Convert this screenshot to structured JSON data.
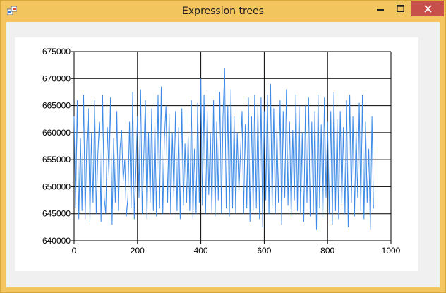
{
  "window": {
    "title": "Expression trees",
    "controls": [
      "minimize",
      "maximize",
      "close"
    ],
    "colors": {
      "frame": "#f3c55f",
      "close": "#c7504b"
    }
  },
  "chart_data": {
    "type": "line",
    "title": "",
    "xlabel": "",
    "ylabel": "",
    "xlim": [
      0,
      1000
    ],
    "ylim": [
      640000,
      675000
    ],
    "x_ticks": [
      0,
      200,
      400,
      600,
      800,
      1000
    ],
    "y_ticks": [
      640000,
      645000,
      650000,
      655000,
      660000,
      665000,
      670000,
      675000
    ],
    "x_tick_labels": [
      "0",
      "200",
      "400",
      "600",
      "800",
      "1000"
    ],
    "y_tick_labels": [
      "640000",
      "645000",
      "650000",
      "655000",
      "660000",
      "665000",
      "670000",
      "675000"
    ],
    "grid": true,
    "series": [
      {
        "color": "#3c8ae6",
        "x_step": 5,
        "values": [
          663000,
          646000,
          666000,
          644000,
          659000,
          645500,
          667000,
          644000,
          658000,
          664500,
          643500,
          660000,
          647000,
          666000,
          645000,
          656000,
          662000,
          643500,
          667000,
          648000,
          645000,
          661000,
          652000,
          666500,
          643000,
          659000,
          647000,
          664000,
          645500,
          657000,
          660500,
          651000,
          655000,
          644500,
          648000,
          662000,
          646000,
          667500,
          644000,
          653000,
          663000,
          648000,
          668000,
          645000,
          656000,
          666000,
          644000,
          660000,
          647000,
          664500,
          645500,
          662000,
          644500,
          667000,
          646000,
          668500,
          645000,
          659000,
          665000,
          647000,
          663500,
          645000,
          660000,
          648000,
          664000,
          645500,
          661000,
          644000,
          664500,
          646500,
          658000,
          647000,
          659500,
          645500,
          666000,
          644000,
          657000,
          645000,
          665500,
          647000,
          670000,
          646500,
          667000,
          645000,
          664000,
          648500,
          660000,
          645000,
          666000,
          644500,
          662000,
          647500,
          667500,
          645000,
          663000,
          672000,
          646000,
          665000,
          644500,
          668000,
          646000,
          663000,
          645000,
          660000,
          649000,
          656000,
          664000,
          645000,
          661500,
          646000,
          666500,
          643500,
          663000,
          645500,
          667000,
          646000,
          665000,
          644000,
          666500,
          642500,
          664000,
          647500,
          667000,
          645000,
          669000,
          646000,
          664500,
          645000,
          661000,
          647000,
          666000,
          643000,
          664000,
          648000,
          668000,
          646500,
          662000,
          644500,
          660500,
          647500,
          667000,
          645500,
          665000,
          645000,
          660000,
          643500,
          665000,
          647000,
          666500,
          644500,
          662000,
          645000,
          664000,
          642000,
          667000,
          646000,
          661500,
          644000,
          666500,
          648000,
          662000,
          645000,
          664000,
          643000,
          667500,
          645500,
          662500,
          644000,
          664000,
          646500,
          661000,
          645000,
          666000,
          642500,
          667000,
          647000,
          663000,
          644500,
          661000,
          648000,
          665500,
          645500,
          667000,
          644000,
          662000,
          647000,
          657000,
          642000,
          663000,
          646000
        ]
      }
    ]
  }
}
